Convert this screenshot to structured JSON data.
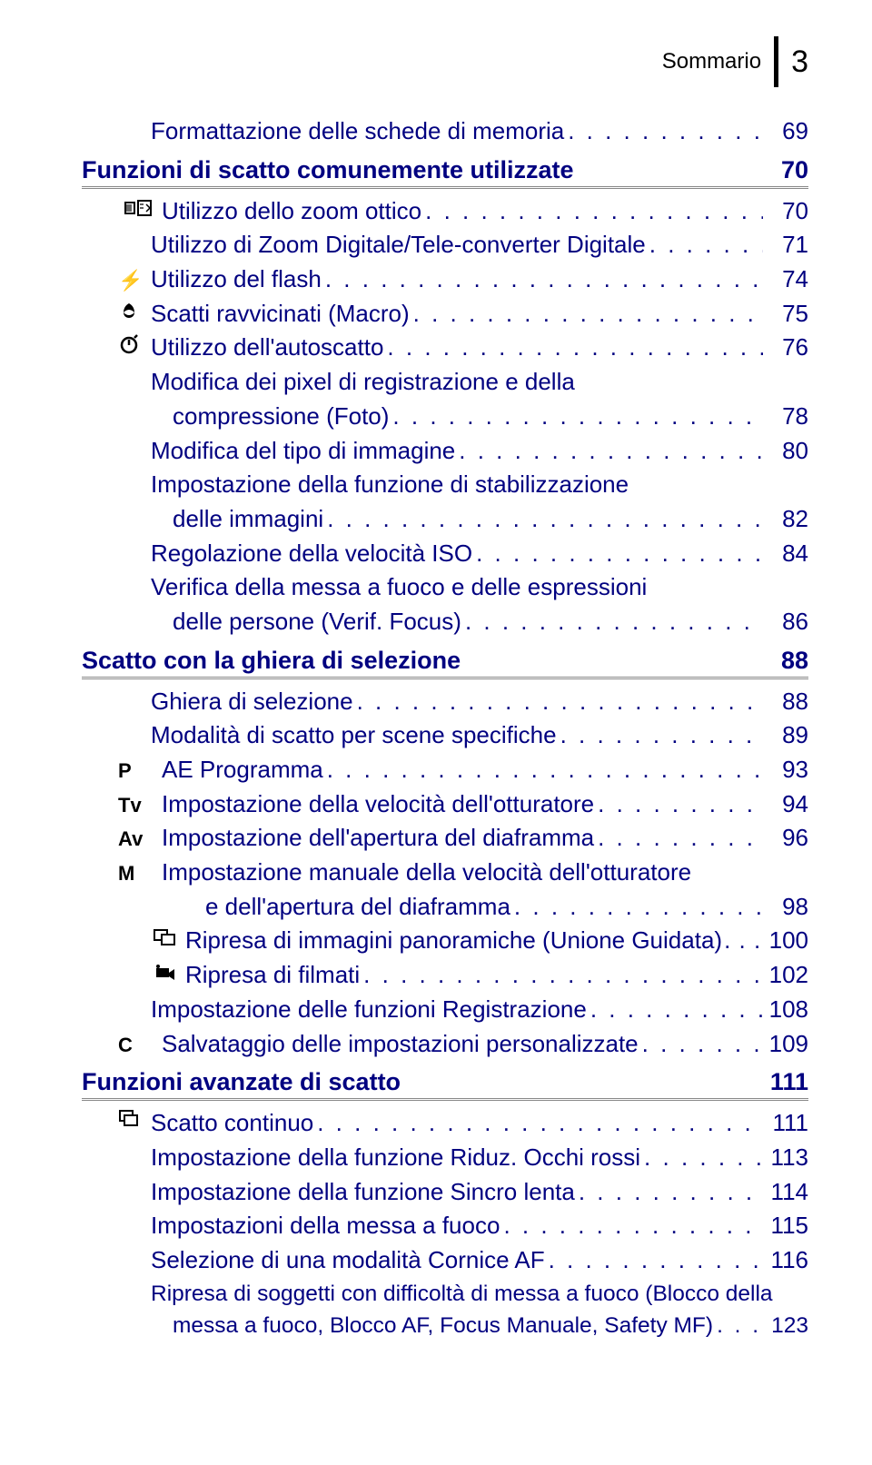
{
  "header": {
    "label": "Sommario",
    "page": "3"
  },
  "lines": [
    {
      "type": "item",
      "indent": 1,
      "icon": "",
      "text": "Formattazione delle schede di memoria",
      "page": "69"
    },
    {
      "type": "section",
      "text": "Funzioni di scatto comunemente utilizzate",
      "page": "70"
    },
    {
      "type": "item",
      "indent": 1,
      "iconSvg": "zoom",
      "text": "Utilizzo dello zoom ottico",
      "page": "70"
    },
    {
      "type": "item",
      "indent": 1,
      "icon": "",
      "text": "Utilizzo di Zoom Digitale/Tele-converter Digitale",
      "page": "71"
    },
    {
      "type": "item",
      "indent": 1,
      "icon": "⚡",
      "text": "Utilizzo del flash",
      "page": "74"
    },
    {
      "type": "item",
      "indent": 1,
      "iconSvg": "macro",
      "text": "Scatti ravvicinati (Macro)",
      "page": "75"
    },
    {
      "type": "item",
      "indent": 1,
      "iconSvg": "timer",
      "text": "Utilizzo dell'autoscatto",
      "page": "76"
    },
    {
      "type": "item",
      "indent": 1,
      "icon": "",
      "text": "Modifica dei pixel di registrazione e della",
      "page": ""
    },
    {
      "type": "cont",
      "indent": 1,
      "text": "compressione (Foto)",
      "page": "78"
    },
    {
      "type": "item",
      "indent": 1,
      "icon": "",
      "text": "Modifica del tipo di immagine",
      "page": "80"
    },
    {
      "type": "item",
      "indent": 1,
      "icon": "",
      "text": "Impostazione della funzione di stabilizzazione",
      "page": ""
    },
    {
      "type": "cont",
      "indent": 1,
      "text": "delle immagini",
      "page": "82"
    },
    {
      "type": "item",
      "indent": 1,
      "icon": "",
      "text": "Regolazione della velocità ISO",
      "page": "84"
    },
    {
      "type": "item",
      "indent": 1,
      "icon": "",
      "text": "Verifica della messa a fuoco e delle espressioni",
      "page": ""
    },
    {
      "type": "cont",
      "indent": 1,
      "text": "delle persone (Verif. Focus)",
      "page": "86"
    },
    {
      "type": "section",
      "text": "Scatto con la ghiera di selezione",
      "page": "88"
    },
    {
      "type": "item",
      "indent": 1,
      "icon": "",
      "text": "Ghiera di selezione",
      "page": "88"
    },
    {
      "type": "item",
      "indent": 1,
      "icon": "",
      "text": "Modalità di scatto per scene specifiche",
      "page": "89"
    },
    {
      "type": "item",
      "indent": 1,
      "mode": "P",
      "text": "AE Programma",
      "page": "93"
    },
    {
      "type": "item",
      "indent": 1,
      "mode": "Tv",
      "text": "Impostazione della velocità dell'otturatore",
      "page": "94"
    },
    {
      "type": "item",
      "indent": 1,
      "mode": "Av",
      "text": "Impostazione dell'apertura del diaframma",
      "page": "96"
    },
    {
      "type": "item",
      "indent": 1,
      "mode": "M",
      "text": "Impostazione manuale della velocità dell'otturatore",
      "page": ""
    },
    {
      "type": "cont",
      "indent": 2,
      "text": "e dell'apertura del diaframma",
      "page": "98"
    },
    {
      "type": "item",
      "indent": 2,
      "iconSvg": "pano",
      "text": "Ripresa di immagini panoramiche (Unione Guidata)",
      "page": "100",
      "tightDots": true
    },
    {
      "type": "item",
      "indent": 2,
      "iconSvg": "movie",
      "text": "Ripresa di filmati",
      "page": "102"
    },
    {
      "type": "item",
      "indent": 1,
      "icon": "",
      "text": "Impostazione delle funzioni Registrazione",
      "page": "108"
    },
    {
      "type": "item",
      "indent": 1,
      "mode": "C",
      "text": "Salvataggio delle impostazioni personalizzate",
      "page": "109"
    },
    {
      "type": "section",
      "text": "Funzioni avanzate di scatto",
      "page": "111"
    },
    {
      "type": "item",
      "indent": 1,
      "iconSvg": "burst",
      "text": "Scatto continuo",
      "page": "111"
    },
    {
      "type": "item",
      "indent": 1,
      "icon": "",
      "text": "Impostazione della funzione Riduz. Occhi rossi",
      "page": "113"
    },
    {
      "type": "item",
      "indent": 1,
      "icon": "",
      "text": "Impostazione della funzione Sincro lenta",
      "page": "114"
    },
    {
      "type": "item",
      "indent": 1,
      "icon": "",
      "text": "Impostazioni della messa a fuoco",
      "page": "115"
    },
    {
      "type": "item",
      "indent": 1,
      "icon": "",
      "text": "Selezione di una modalità Cornice AF",
      "page": "116"
    },
    {
      "type": "item",
      "indent": 1,
      "icon": "",
      "small": true,
      "text": "Ripresa di soggetti con difficoltà di messa a fuoco (Blocco della",
      "page": ""
    },
    {
      "type": "cont",
      "indent": 1,
      "small": true,
      "text": "messa a fuoco, Blocco AF, Focus Manuale, Safety MF)",
      "page": "123"
    }
  ]
}
